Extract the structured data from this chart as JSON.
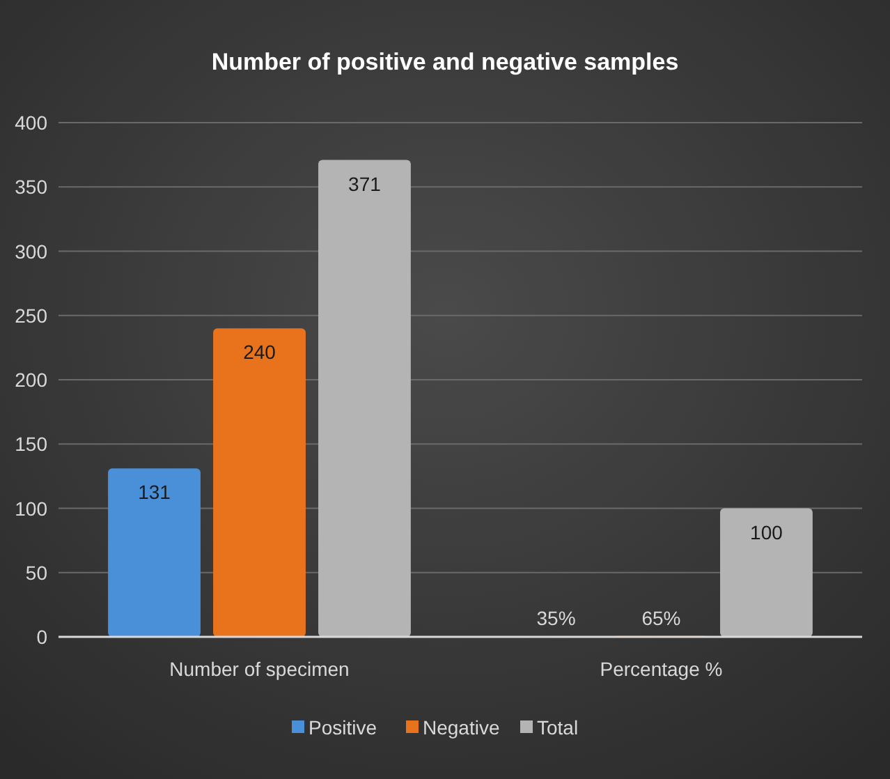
{
  "chart_data": {
    "type": "bar",
    "title": "Number of positive and negative samples",
    "categories": [
      "Number of specimen",
      "Percentage %"
    ],
    "series": [
      {
        "name": "Positive",
        "color": "#4a90d9",
        "values": [
          131,
          0.35
        ],
        "value_labels": [
          "131",
          "35%"
        ]
      },
      {
        "name": "Negative",
        "color": "#e8731c",
        "values": [
          240,
          0.65
        ],
        "value_labels": [
          "240",
          "65%"
        ]
      },
      {
        "name": "Total",
        "color": "#b4b4b4",
        "values": [
          371,
          100
        ],
        "value_labels": [
          "371",
          "100"
        ]
      }
    ],
    "ylim": [
      0,
      400
    ],
    "yticks": [
      0,
      50,
      100,
      150,
      200,
      250,
      300,
      350,
      400
    ],
    "grid": "y",
    "legend": "bottom"
  }
}
